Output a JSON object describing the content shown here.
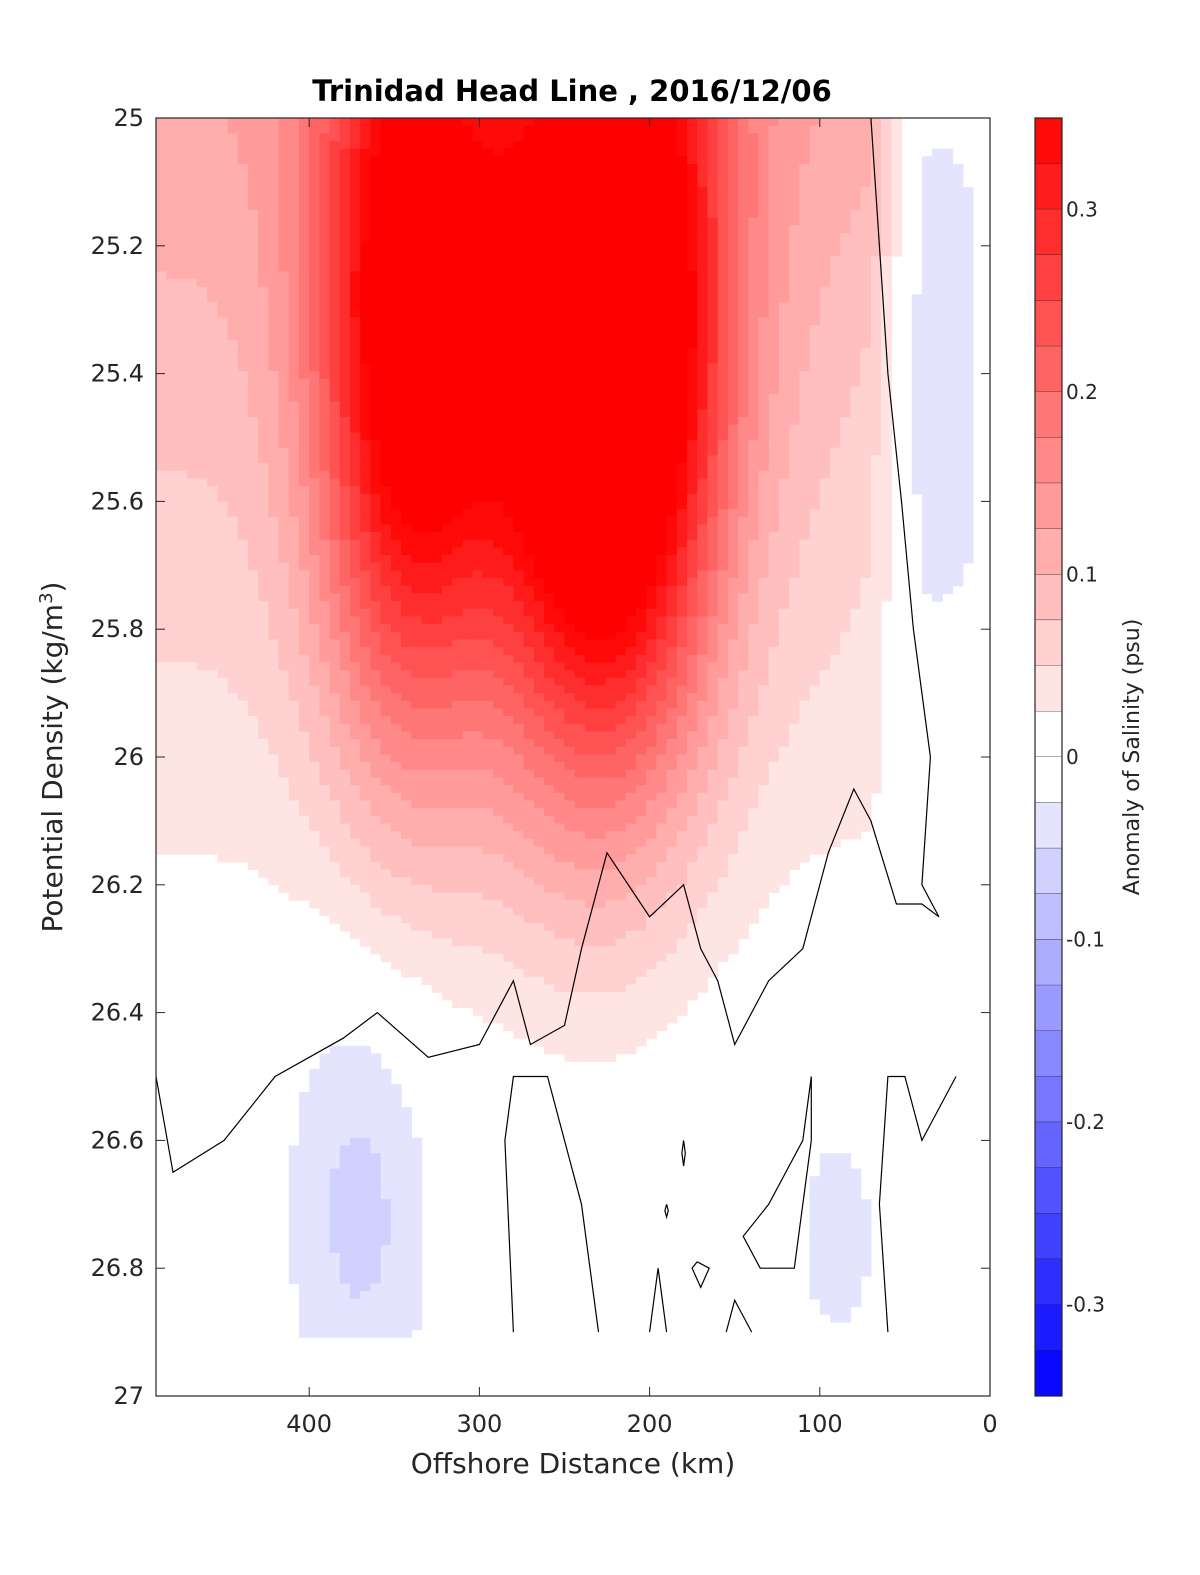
{
  "chart_data": {
    "type": "heatmap",
    "subtype": "filled-contour",
    "title": "Trinidad Head Line , 2016/12/06",
    "xlabel": "Offshore Distance (km)",
    "ylabel_main": "Potential Density (kg/m",
    "ylabel_sup": "3",
    "ylabel_close": ")",
    "colorbar_label": "Anomaly of Salinity (psu)",
    "xlim": [
      490,
      0
    ],
    "x_reversed": true,
    "ylim": [
      25,
      27
    ],
    "y_reversed": true,
    "x_ticks": [
      400,
      300,
      200,
      100,
      0
    ],
    "y_ticks": [
      25,
      25.2,
      25.4,
      25.6,
      25.8,
      26,
      26.2,
      26.4,
      26.6,
      26.8,
      27
    ],
    "y_tick_labels": [
      "25",
      "25.2",
      "25.4",
      "25.6",
      "25.8",
      "26",
      "26.2",
      "26.4",
      "26.6",
      "26.8",
      "27"
    ],
    "colorbar_limits": [
      -0.35,
      0.35
    ],
    "colorbar_ticks": [
      0.3,
      0.2,
      0.1,
      0,
      -0.1,
      -0.2,
      -0.3
    ],
    "colorbar_tick_labels": [
      "0.3",
      "0.2",
      "0.1",
      "0",
      "-0.1",
      "-0.2",
      "-0.3"
    ],
    "colormap_levels": [
      0.35,
      0.325,
      0.3,
      0.275,
      0.25,
      0.225,
      0.2,
      0.175,
      0.15,
      0.125,
      0.1,
      0.075,
      0.05,
      0.025,
      0,
      -0.025,
      -0.05,
      -0.075,
      -0.1,
      -0.125,
      -0.15,
      -0.175,
      -0.2,
      -0.225,
      -0.25,
      -0.275,
      -0.3,
      -0.325,
      -0.35
    ],
    "colormap": {
      "positive": "#ff0000",
      "zero": "#ffffff",
      "negative": "#0000ff"
    },
    "data_extent": {
      "x": [
        490,
        10
      ],
      "y": [
        25,
        26.9
      ]
    },
    "features": [
      {
        "name": "salty core A",
        "x_center": 340,
        "y_range": [
          25,
          25.7
        ],
        "max_anomaly": 0.33
      },
      {
        "name": "salty core B",
        "x_center": 205,
        "y_range": [
          25,
          25.7
        ],
        "max_anomaly": 0.3
      },
      {
        "name": "salty core C",
        "x_center": 250,
        "y_range": [
          25.1,
          25.8
        ],
        "max_anomaly": 0.24
      },
      {
        "name": "fresh patch deep",
        "x_center": 370,
        "y_range": [
          26.5,
          26.9
        ],
        "min_anomaly": -0.06
      },
      {
        "name": "fresh nearshore",
        "x_center": 30,
        "y_range": [
          25,
          25.8
        ],
        "min_anomaly": -0.04
      },
      {
        "name": "fresh pocket",
        "x_center": 90,
        "y_range": [
          26.6,
          26.9
        ],
        "min_anomaly": -0.03
      }
    ],
    "zero_contours": [
      {
        "points": [
          [
            70,
            25
          ],
          [
            60,
            25.4
          ],
          [
            52,
            25.6
          ],
          [
            45,
            25.8
          ],
          [
            35,
            26
          ],
          [
            40,
            26.2
          ],
          [
            30,
            26.25
          ],
          [
            40,
            26.23
          ],
          [
            55,
            26.23
          ],
          [
            70,
            26.1
          ],
          [
            80,
            26.05
          ],
          [
            95,
            26.15
          ],
          [
            110,
            26.3
          ],
          [
            130,
            26.35
          ],
          [
            150,
            26.45
          ],
          [
            160,
            26.35
          ],
          [
            170,
            26.3
          ],
          [
            180,
            26.2
          ],
          [
            200,
            26.25
          ],
          [
            225,
            26.15
          ],
          [
            240,
            26.3
          ],
          [
            250,
            26.42
          ],
          [
            270,
            26.45
          ],
          [
            280,
            26.35
          ],
          [
            300,
            26.45
          ],
          [
            330,
            26.47
          ],
          [
            360,
            26.4
          ],
          [
            380,
            26.44
          ],
          [
            420,
            26.5
          ],
          [
            450,
            26.6
          ],
          [
            480,
            26.65
          ],
          [
            490,
            26.5
          ]
        ]
      },
      {
        "points": [
          [
            280,
            26.9
          ],
          [
            285,
            26.6
          ],
          [
            280,
            26.5
          ],
          [
            260,
            26.5
          ],
          [
            240,
            26.7
          ],
          [
            230,
            26.9
          ]
        ]
      },
      {
        "points": [
          [
            200,
            26.9
          ],
          [
            195,
            26.8
          ],
          [
            190,
            26.9
          ]
        ]
      },
      {
        "points": [
          [
            155,
            26.9
          ],
          [
            150,
            26.85
          ],
          [
            140,
            26.9
          ]
        ]
      },
      {
        "points": [
          [
            105,
            26.5
          ],
          [
            110,
            26.6
          ],
          [
            130,
            26.7
          ],
          [
            145,
            26.75
          ],
          [
            135,
            26.8
          ],
          [
            115,
            26.8
          ],
          [
            105,
            26.6
          ],
          [
            105,
            26.5
          ]
        ]
      },
      {
        "points": [
          [
            60,
            26.9
          ],
          [
            65,
            26.7
          ],
          [
            60,
            26.5
          ],
          [
            50,
            26.5
          ],
          [
            40,
            26.6
          ],
          [
            20,
            26.5
          ]
        ]
      },
      {
        "points": [
          [
            180,
            26.6
          ],
          [
            181,
            26.62
          ],
          [
            180,
            26.64
          ],
          [
            179,
            26.62
          ],
          [
            180,
            26.6
          ]
        ]
      },
      {
        "points": [
          [
            190,
            26.7
          ],
          [
            191,
            26.71
          ],
          [
            190,
            26.72
          ],
          [
            189,
            26.71
          ],
          [
            190,
            26.7
          ]
        ]
      },
      {
        "points": [
          [
            172,
            26.79
          ],
          [
            165,
            26.8
          ],
          [
            170,
            26.83
          ],
          [
            175,
            26.8
          ],
          [
            172,
            26.79
          ]
        ]
      }
    ]
  }
}
